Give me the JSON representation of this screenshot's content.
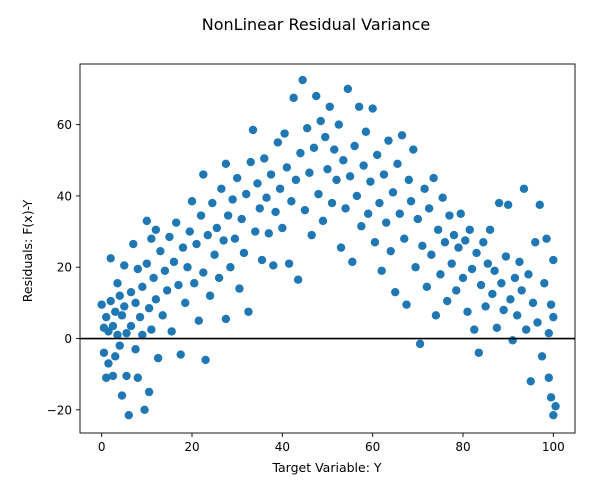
{
  "chart_data": {
    "type": "scatter",
    "title": "NonLinear Residual Variance",
    "xlabel": "Target Variable: Y",
    "ylabel": "Residuals: F(x)-Y",
    "xlim": [
      -4.8,
      104.8
    ],
    "ylim": [
      -26.5,
      77.0
    ],
    "xticks": [
      0,
      20,
      40,
      60,
      80,
      100
    ],
    "yticks": [
      -20,
      0,
      20,
      40,
      60
    ],
    "xtick_labels": [
      "0",
      "20",
      "40",
      "60",
      "80",
      "100"
    ],
    "ytick_labels": [
      "−20",
      "0",
      "20",
      "40",
      "60"
    ],
    "reference_line_y": 0,
    "grid": false,
    "marker_color": "#1f77b4",
    "line_color": "#000000",
    "series": [
      {
        "points": [
          [
            0.0,
            9.5
          ],
          [
            0.5,
            3.0
          ],
          [
            0.5,
            -4.0
          ],
          [
            1.0,
            6.0
          ],
          [
            1.0,
            -11.0
          ],
          [
            1.5,
            2.0
          ],
          [
            1.5,
            -7.0
          ],
          [
            2.0,
            22.5
          ],
          [
            2.0,
            10.5
          ],
          [
            2.5,
            3.5
          ],
          [
            2.5,
            -10.5
          ],
          [
            3.0,
            7.5
          ],
          [
            3.0,
            -5.0
          ],
          [
            3.5,
            15.5
          ],
          [
            3.5,
            1.0
          ],
          [
            4.0,
            12.0
          ],
          [
            4.0,
            -2.0
          ],
          [
            4.5,
            6.5
          ],
          [
            4.5,
            -16.0
          ],
          [
            5.0,
            20.5
          ],
          [
            5.0,
            9.0
          ],
          [
            5.5,
            1.5
          ],
          [
            5.5,
            -10.5
          ],
          [
            6.0,
            -21.5
          ],
          [
            6.5,
            13.0
          ],
          [
            6.5,
            3.5
          ],
          [
            7.0,
            26.5
          ],
          [
            7.5,
            10.0
          ],
          [
            7.5,
            -3.0
          ],
          [
            8.0,
            19.5
          ],
          [
            8.0,
            -11.0
          ],
          [
            8.5,
            6.0
          ],
          [
            9.0,
            14.5
          ],
          [
            9.0,
            1.0
          ],
          [
            9.5,
            -20.0
          ],
          [
            10.0,
            33.0
          ],
          [
            10.0,
            21.0
          ],
          [
            10.5,
            8.5
          ],
          [
            10.5,
            -15.0
          ],
          [
            11.0,
            28.0
          ],
          [
            11.0,
            2.5
          ],
          [
            11.5,
            17.0
          ],
          [
            12.0,
            30.5
          ],
          [
            12.0,
            11.0
          ],
          [
            12.5,
            -5.5
          ],
          [
            13.0,
            24.5
          ],
          [
            13.5,
            6.5
          ],
          [
            14.0,
            19.0
          ],
          [
            14.5,
            13.5
          ],
          [
            15.0,
            28.5
          ],
          [
            15.5,
            2.0
          ],
          [
            16.0,
            21.5
          ],
          [
            16.5,
            32.5
          ],
          [
            17.0,
            15.0
          ],
          [
            17.5,
            -4.5
          ],
          [
            18.0,
            25.5
          ],
          [
            18.5,
            10.0
          ],
          [
            19.0,
            20.0
          ],
          [
            19.5,
            30.0
          ],
          [
            20.0,
            38.5
          ],
          [
            20.5,
            15.5
          ],
          [
            21.0,
            26.5
          ],
          [
            21.5,
            5.0
          ],
          [
            22.0,
            34.5
          ],
          [
            22.5,
            46.0
          ],
          [
            22.5,
            18.5
          ],
          [
            23.0,
            -6.0
          ],
          [
            23.5,
            29.0
          ],
          [
            24.0,
            12.0
          ],
          [
            24.5,
            38.0
          ],
          [
            25.0,
            23.5
          ],
          [
            25.5,
            31.0
          ],
          [
            26.0,
            17.0
          ],
          [
            26.5,
            42.0
          ],
          [
            27.0,
            27.5
          ],
          [
            27.5,
            49.0
          ],
          [
            27.5,
            5.5
          ],
          [
            28.0,
            34.5
          ],
          [
            28.5,
            20.0
          ],
          [
            29.0,
            39.0
          ],
          [
            29.5,
            28.0
          ],
          [
            30.0,
            45.0
          ],
          [
            30.5,
            14.0
          ],
          [
            31.0,
            33.5
          ],
          [
            31.5,
            24.0
          ],
          [
            32.0,
            40.5
          ],
          [
            32.5,
            7.5
          ],
          [
            33.0,
            49.5
          ],
          [
            33.5,
            58.5
          ],
          [
            34.0,
            30.0
          ],
          [
            34.5,
            43.5
          ],
          [
            35.0,
            36.5
          ],
          [
            35.5,
            22.0
          ],
          [
            36.0,
            50.5
          ],
          [
            36.5,
            39.5
          ],
          [
            37.0,
            29.5
          ],
          [
            37.5,
            46.0
          ],
          [
            38.0,
            20.5
          ],
          [
            38.5,
            35.5
          ],
          [
            39.0,
            55.0
          ],
          [
            39.5,
            42.0
          ],
          [
            40.0,
            31.0
          ],
          [
            40.5,
            57.5
          ],
          [
            41.0,
            48.0
          ],
          [
            41.5,
            21.0
          ],
          [
            42.0,
            38.5
          ],
          [
            42.5,
            67.5
          ],
          [
            43.0,
            44.5
          ],
          [
            43.5,
            16.5
          ],
          [
            44.0,
            52.0
          ],
          [
            44.5,
            72.5
          ],
          [
            45.0,
            36.0
          ],
          [
            45.5,
            59.0
          ],
          [
            46.0,
            46.5
          ],
          [
            46.5,
            29.0
          ],
          [
            47.0,
            53.5
          ],
          [
            47.5,
            68.0
          ],
          [
            48.0,
            40.5
          ],
          [
            48.5,
            61.0
          ],
          [
            49.0,
            33.0
          ],
          [
            49.5,
            56.5
          ],
          [
            50.0,
            47.5
          ],
          [
            50.5,
            65.0
          ],
          [
            51.0,
            38.0
          ],
          [
            51.5,
            53.0
          ],
          [
            52.0,
            44.5
          ],
          [
            52.5,
            60.0
          ],
          [
            53.0,
            25.5
          ],
          [
            53.5,
            50.0
          ],
          [
            54.0,
            36.5
          ],
          [
            54.5,
            70.0
          ],
          [
            55.0,
            45.5
          ],
          [
            55.5,
            21.5
          ],
          [
            56.0,
            54.0
          ],
          [
            56.5,
            40.0
          ],
          [
            57.0,
            65.0
          ],
          [
            57.5,
            31.5
          ],
          [
            58.0,
            48.5
          ],
          [
            58.5,
            58.0
          ],
          [
            59.0,
            35.0
          ],
          [
            59.5,
            44.0
          ],
          [
            60.0,
            64.5
          ],
          [
            60.5,
            27.0
          ],
          [
            61.0,
            51.5
          ],
          [
            61.5,
            38.0
          ],
          [
            62.0,
            19.0
          ],
          [
            62.5,
            46.0
          ],
          [
            63.0,
            32.5
          ],
          [
            63.5,
            55.5
          ],
          [
            64.0,
            24.5
          ],
          [
            64.5,
            41.0
          ],
          [
            65.0,
            13.0
          ],
          [
            65.5,
            49.0
          ],
          [
            66.0,
            35.0
          ],
          [
            66.5,
            57.0
          ],
          [
            67.0,
            28.0
          ],
          [
            67.5,
            9.5
          ],
          [
            68.0,
            44.5
          ],
          [
            68.5,
            38.5
          ],
          [
            69.0,
            53.0
          ],
          [
            69.5,
            20.0
          ],
          [
            70.0,
            33.5
          ],
          [
            70.5,
            -1.5
          ],
          [
            71.0,
            26.0
          ],
          [
            71.5,
            42.0
          ],
          [
            72.0,
            14.5
          ],
          [
            72.5,
            36.5
          ],
          [
            73.0,
            23.5
          ],
          [
            73.5,
            45.0
          ],
          [
            74.0,
            6.5
          ],
          [
            74.5,
            30.5
          ],
          [
            75.0,
            18.0
          ],
          [
            75.5,
            39.5
          ],
          [
            76.0,
            27.0
          ],
          [
            76.5,
            10.5
          ],
          [
            77.0,
            34.5
          ],
          [
            77.5,
            21.0
          ],
          [
            78.0,
            29.0
          ],
          [
            78.5,
            13.5
          ],
          [
            79.0,
            25.5
          ],
          [
            79.5,
            35.0
          ],
          [
            80.0,
            17.0
          ],
          [
            80.5,
            27.5
          ],
          [
            81.0,
            7.5
          ],
          [
            81.5,
            30.5
          ],
          [
            82.0,
            19.5
          ],
          [
            82.5,
            2.5
          ],
          [
            83.0,
            24.0
          ],
          [
            83.5,
            -4.0
          ],
          [
            84.0,
            15.0
          ],
          [
            84.5,
            27.0
          ],
          [
            85.0,
            9.0
          ],
          [
            85.5,
            21.0
          ],
          [
            86.0,
            30.5
          ],
          [
            86.5,
            12.5
          ],
          [
            87.0,
            19.0
          ],
          [
            87.5,
            3.0
          ],
          [
            88.0,
            38.0
          ],
          [
            88.5,
            15.5
          ],
          [
            89.0,
            8.0
          ],
          [
            89.5,
            23.0
          ],
          [
            90.0,
            37.5
          ],
          [
            90.5,
            11.0
          ],
          [
            91.0,
            -0.5
          ],
          [
            91.5,
            17.0
          ],
          [
            92.0,
            6.5
          ],
          [
            92.5,
            21.5
          ],
          [
            93.0,
            13.5
          ],
          [
            93.5,
            42.0
          ],
          [
            94.0,
            2.5
          ],
          [
            94.5,
            18.0
          ],
          [
            95.0,
            -12.0
          ],
          [
            95.5,
            10.0
          ],
          [
            96.0,
            27.0
          ],
          [
            96.5,
            4.5
          ],
          [
            97.0,
            37.5
          ],
          [
            97.5,
            -5.0
          ],
          [
            98.0,
            15.5
          ],
          [
            98.5,
            28.0
          ],
          [
            99.0,
            -11.0
          ],
          [
            99.0,
            1.5
          ],
          [
            99.5,
            -16.5
          ],
          [
            99.5,
            9.5
          ],
          [
            100.0,
            -21.5
          ],
          [
            100.0,
            22.0
          ],
          [
            100.0,
            6.0
          ],
          [
            100.5,
            -19.0
          ]
        ]
      }
    ]
  }
}
